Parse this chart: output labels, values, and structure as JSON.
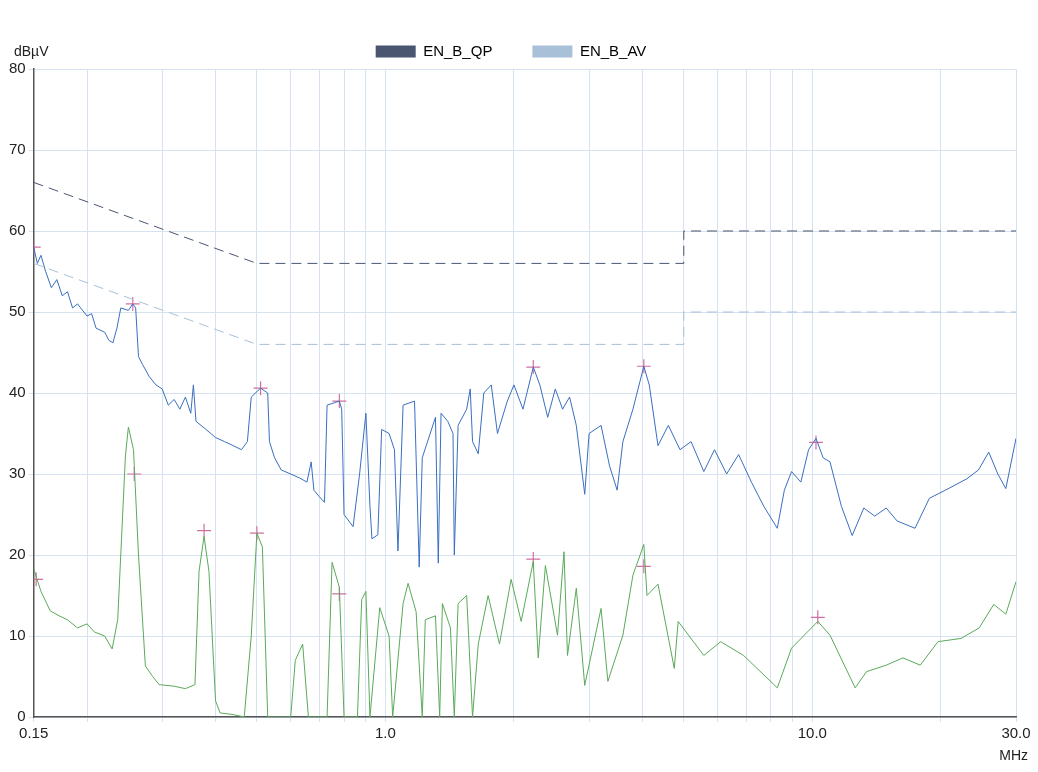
{
  "chart_data": {
    "type": "line",
    "xlabel": "MHz",
    "ylabel": "dBµV",
    "log": "x",
    "grid": true,
    "legend": "top",
    "xlim": [
      0.15,
      30
    ],
    "ylim": [
      0,
      80
    ],
    "xticks": [
      {
        "value": 0.15,
        "label": "0.15"
      },
      {
        "value": 0.2,
        "label": null
      },
      {
        "value": 0.3,
        "label": null
      },
      {
        "value": 0.4,
        "label": null
      },
      {
        "value": 0.5,
        "label": null
      },
      {
        "value": 0.6,
        "label": null
      },
      {
        "value": 0.7,
        "label": null
      },
      {
        "value": 0.8,
        "label": null
      },
      {
        "value": 0.9,
        "label": null
      },
      {
        "value": 1,
        "label": "1.0"
      },
      {
        "value": 2,
        "label": null
      },
      {
        "value": 3,
        "label": null
      },
      {
        "value": 4,
        "label": null
      },
      {
        "value": 5,
        "label": null
      },
      {
        "value": 6,
        "label": null
      },
      {
        "value": 7,
        "label": null
      },
      {
        "value": 8,
        "label": null
      },
      {
        "value": 9,
        "label": null
      },
      {
        "value": 10,
        "label": "10.0"
      },
      {
        "value": 20,
        "label": null
      },
      {
        "value": 30,
        "label": "30.0"
      }
    ],
    "yticks": [
      0,
      10,
      20,
      30,
      40,
      50,
      60,
      70,
      80
    ],
    "series": [
      {
        "name": "EN_B_QP",
        "type": "line",
        "line_style": "dashed",
        "marker": "none",
        "color": "#4a5570",
        "x": [
          0.15,
          0.5,
          5,
          5,
          30
        ],
        "values": [
          66,
          56,
          56,
          60,
          60
        ]
      },
      {
        "name": "EN_B_AV",
        "type": "line",
        "line_style": "dashed",
        "marker": "none",
        "color": "#a8c0d8",
        "x": [
          0.15,
          0.5,
          5,
          5,
          30
        ],
        "values": [
          56,
          46,
          46,
          50,
          50
        ]
      },
      {
        "type": "line",
        "marker": "none",
        "color": "#3a6fc0",
        "x": [
          0.15,
          0.153,
          0.156,
          0.16,
          0.165,
          0.17,
          0.175,
          0.18,
          0.185,
          0.19,
          0.2,
          0.205,
          0.21,
          0.22,
          0.225,
          0.23,
          0.235,
          0.24,
          0.25,
          0.256,
          0.26,
          0.264,
          0.27,
          0.28,
          0.29,
          0.3,
          0.31,
          0.32,
          0.33,
          0.34,
          0.35,
          0.355,
          0.36,
          0.38,
          0.4,
          0.42,
          0.44,
          0.46,
          0.475,
          0.485,
          0.51,
          0.53,
          0.535,
          0.55,
          0.57,
          0.6,
          0.63,
          0.655,
          0.67,
          0.68,
          0.7,
          0.72,
          0.73,
          0.76,
          0.78,
          0.79,
          0.8,
          0.84,
          0.87,
          0.9,
          0.92,
          0.93,
          0.96,
          0.98,
          1.02,
          1.05,
          1.07,
          1.1,
          1.17,
          1.2,
          1.22,
          1.31,
          1.33,
          1.35,
          1.4,
          1.44,
          1.45,
          1.48,
          1.55,
          1.58,
          1.6,
          1.65,
          1.7,
          1.77,
          1.83,
          1.93,
          2.0,
          2.1,
          2.22,
          2.3,
          2.4,
          2.5,
          2.6,
          2.7,
          2.8,
          2.93,
          3.0,
          3.2,
          3.35,
          3.49,
          3.6,
          3.8,
          4.03,
          4.15,
          4.35,
          4.6,
          4.9,
          5.2,
          5.57,
          5.9,
          6.3,
          6.72,
          7.2,
          7.7,
          8.28,
          8.6,
          8.94,
          9.4,
          9.8,
          10.2,
          10.6,
          11.0,
          11.7,
          12.4,
          13.2,
          14.0,
          14.9,
          15.8,
          17.4,
          18.8,
          20.5,
          23.0,
          24.5,
          25.9,
          27.2,
          28.4,
          30
        ],
        "values": [
          58,
          56,
          57,
          55,
          53,
          54,
          52,
          52.5,
          50.5,
          51,
          49.5,
          49.8,
          48,
          47.5,
          46.5,
          46.2,
          48,
          50.5,
          50.2,
          51,
          50.5,
          44.5,
          43.5,
          42,
          41,
          40.5,
          38.5,
          39.2,
          38,
          39.5,
          37.5,
          41,
          36.5,
          35.5,
          34.5,
          34,
          33.5,
          33,
          34,
          39.5,
          40.6,
          40,
          34,
          32,
          30.5,
          30,
          29.5,
          29,
          31.5,
          28,
          27.2,
          26.5,
          38.5,
          38.8,
          39,
          38,
          25,
          23.5,
          30,
          37.5,
          26,
          22,
          22.5,
          35.5,
          35,
          33,
          20.5,
          38.5,
          39,
          18.5,
          32,
          37,
          19,
          37.5,
          36.5,
          35,
          20,
          36,
          38,
          40.5,
          34,
          32.5,
          40,
          41,
          35,
          39,
          41,
          38,
          43.2,
          41,
          37,
          40.5,
          38,
          39.5,
          36,
          27.5,
          35,
          36,
          31,
          28,
          34,
          38,
          43.3,
          41,
          33.5,
          36,
          33,
          34,
          30.3,
          33,
          30,
          32.4,
          29,
          26,
          23.3,
          28,
          30.3,
          29,
          33,
          34.4,
          32,
          31.5,
          26,
          22.4,
          25.8,
          24.8,
          25.8,
          24.2,
          23.3,
          27,
          28,
          29.4,
          30.5,
          32.7,
          30,
          28.2,
          34.4
        ]
      },
      {
        "type": "line",
        "marker": "none",
        "color": "#5aaa5a",
        "x": [
          0.15,
          0.156,
          0.164,
          0.172,
          0.18,
          0.19,
          0.2,
          0.208,
          0.22,
          0.229,
          0.236,
          0.246,
          0.25,
          0.257,
          0.264,
          0.274,
          0.285,
          0.295,
          0.32,
          0.34,
          0.358,
          0.366,
          0.376,
          0.386,
          0.4,
          0.41,
          0.44,
          0.467,
          0.485,
          0.5,
          0.515,
          0.53,
          0.6,
          0.615,
          0.64,
          0.66,
          0.73,
          0.75,
          0.78,
          0.8,
          0.86,
          0.88,
          0.9,
          0.92,
          0.97,
          1.02,
          1.04,
          1.1,
          1.13,
          1.18,
          1.22,
          1.24,
          1.31,
          1.34,
          1.36,
          1.42,
          1.45,
          1.48,
          1.55,
          1.6,
          1.65,
          1.74,
          1.85,
          1.97,
          2.08,
          2.22,
          2.28,
          2.37,
          2.53,
          2.62,
          2.67,
          2.8,
          2.93,
          3.2,
          3.32,
          3.6,
          3.8,
          4.03,
          4.1,
          4.35,
          4.75,
          4.85,
          5.57,
          6.1,
          6.9,
          8.28,
          8.94,
          10.3,
          11.0,
          12.6,
          13.4,
          14.9,
          16.3,
          17.9,
          19.7,
          22.3,
          24.6,
          26.6,
          28.4,
          30
        ],
        "values": [
          18.3,
          15.5,
          13.1,
          12.5,
          12,
          11,
          11.5,
          10.5,
          10,
          8.4,
          12,
          32.2,
          35.8,
          33,
          20,
          6.3,
          5,
          4,
          3.8,
          3.5,
          4,
          18,
          22.3,
          18,
          2,
          0.5,
          0.3,
          0,
          10,
          22.7,
          21,
          0,
          0,
          7,
          9,
          0,
          0,
          19.1,
          16,
          0,
          0,
          14.5,
          15.5,
          0,
          13.5,
          10,
          0,
          14,
          16.5,
          13,
          0,
          12,
          12.5,
          0,
          14,
          11,
          0,
          14,
          15,
          0,
          9,
          15,
          9,
          17,
          11.8,
          19.2,
          7.3,
          18.7,
          10.1,
          20.4,
          7.6,
          15.9,
          3.9,
          13.4,
          4.4,
          10.1,
          17.5,
          21.3,
          15,
          16.4,
          6,
          11.8,
          7.6,
          9.3,
          7.6,
          3.6,
          8.5,
          11.8,
          10.1,
          3.6,
          5.6,
          6.4,
          7.3,
          6.4,
          9.3,
          9.7,
          11,
          13.9,
          12.7,
          16.7
        ]
      },
      {
        "type": "scatter",
        "marker": "cross",
        "color": "#d070a0",
        "x": [
          0.15,
          0.256,
          0.51,
          0.78,
          2.22,
          4.03,
          10.2
        ],
        "values": [
          58,
          51,
          40.6,
          39,
          43.2,
          43.3,
          33.9
        ]
      },
      {
        "type": "scatter",
        "marker": "cross",
        "color": "#d070a0",
        "x": [
          0.152,
          0.258,
          0.376,
          0.5,
          0.78,
          2.22,
          4.03,
          10.3
        ],
        "values": [
          17,
          30,
          23,
          22.7,
          15.2,
          19.5,
          18.6,
          12.3
        ]
      }
    ]
  }
}
